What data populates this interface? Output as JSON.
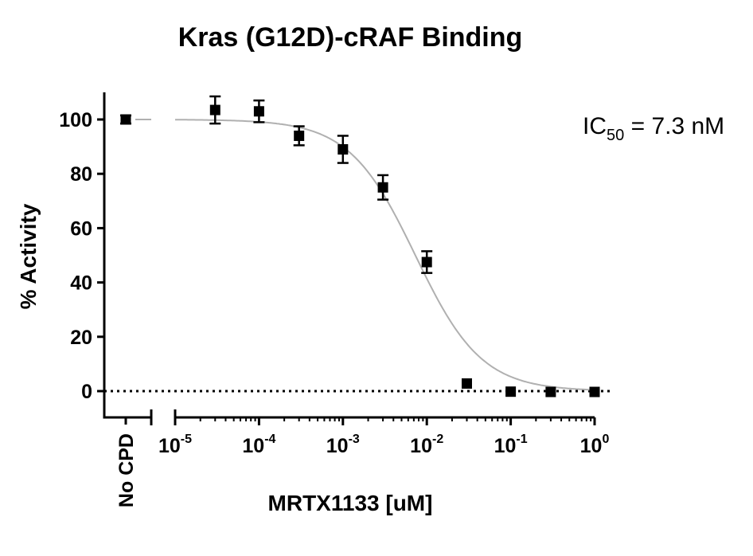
{
  "chart_data": {
    "type": "scatter",
    "title": "Kras (G12D)-cRAF Binding",
    "xlabel": "MRTX1133 [uM]",
    "ylabel": "% Activity",
    "xscale": "log",
    "xlim": [
      5e-06,
      1
    ],
    "ylim": [
      -10,
      110
    ],
    "yticks": [
      0,
      20,
      40,
      60,
      80,
      100
    ],
    "xticks": [
      {
        "value": 1e-05,
        "base": "10",
        "exp": "-5"
      },
      {
        "value": 0.0001,
        "base": "10",
        "exp": "-4"
      },
      {
        "value": 0.001,
        "base": "10",
        "exp": "-3"
      },
      {
        "value": 0.01,
        "base": "10",
        "exp": "-2"
      },
      {
        "value": 0.1,
        "base": "10",
        "exp": "-1"
      },
      {
        "value": 1,
        "base": "10",
        "exp": "0"
      }
    ],
    "no_compound": {
      "label": "No CPD",
      "y": 100,
      "err": 1.5
    },
    "series": [
      {
        "x": [
          3e-05,
          0.0001,
          0.0003,
          0.001,
          0.003,
          0.01,
          0.03,
          0.1,
          0.3,
          1
        ],
        "y": [
          103.5,
          103,
          94,
          89,
          75,
          47.5,
          2.8,
          -0.2,
          -0.3,
          -0.3
        ],
        "err": [
          5,
          4,
          3.5,
          5,
          4.5,
          4,
          0,
          0,
          0,
          0
        ]
      }
    ],
    "fit": {
      "top": 100,
      "bottom": 0,
      "ic50_uM": 0.0073,
      "hill": 1.1
    },
    "zero_line": "dotted",
    "grid": false,
    "annotation": {
      "prefix": "IC",
      "sub": "50",
      "suffix": " = 7.3 nM"
    },
    "colors": {
      "markers": "#000000",
      "fit": "#b0b0b0",
      "axes": "#000000"
    }
  }
}
